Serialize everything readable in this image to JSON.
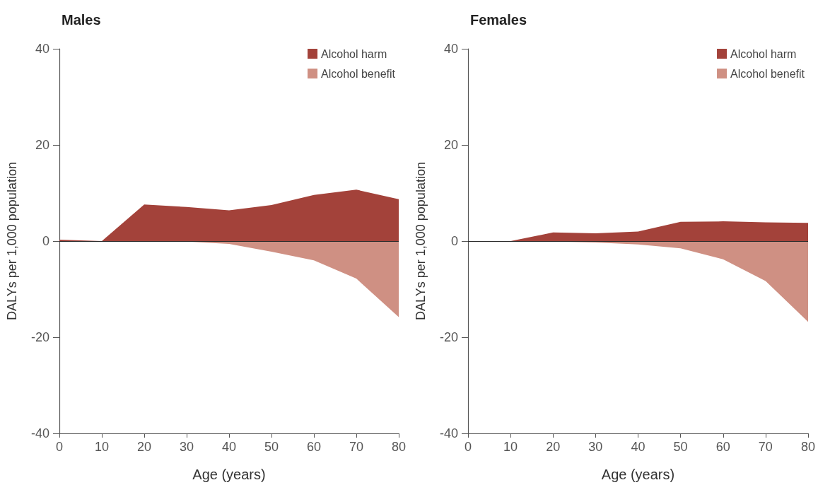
{
  "chart_data": [
    {
      "type": "area",
      "title": "Males",
      "xlabel": "Age (years)",
      "ylabel": "DALYs per 1,000 population",
      "x": [
        0,
        10,
        20,
        30,
        40,
        50,
        60,
        70,
        80
      ],
      "series": [
        {
          "name": "Alcohol harm",
          "color": "#a3423a",
          "values": [
            0.3,
            0,
            7.6,
            7.1,
            6.4,
            7.5,
            9.6,
            10.7,
            8.7
          ]
        },
        {
          "name": "Alcohol benefit",
          "color": "#cf9083",
          "values": [
            0,
            0,
            0,
            -0.1,
            -0.6,
            -2.2,
            -4.0,
            -7.8,
            -15.8
          ]
        }
      ],
      "xlim": [
        0,
        80
      ],
      "xticks": [
        0,
        10,
        20,
        30,
        40,
        50,
        60,
        70,
        80
      ],
      "ylim": [
        -40,
        40
      ],
      "yticks": [
        -40,
        -20,
        0,
        20,
        40
      ],
      "grid": false,
      "legend": "top right",
      "ref_lines": [
        {
          "axis": "y",
          "value": 0,
          "color": "#2b2b2b"
        }
      ]
    },
    {
      "type": "area",
      "title": "Females",
      "xlabel": "Age (years)",
      "ylabel": "DALYs per 1,000 population",
      "x": [
        0,
        10,
        20,
        30,
        40,
        50,
        60,
        70,
        80
      ],
      "series": [
        {
          "name": "Alcohol harm",
          "color": "#a3423a",
          "values": [
            0,
            0,
            1.8,
            1.6,
            2.0,
            4.0,
            4.1,
            3.9,
            3.8
          ]
        },
        {
          "name": "Alcohol benefit",
          "color": "#cf9083",
          "values": [
            0,
            0,
            -0.1,
            -0.3,
            -0.7,
            -1.5,
            -3.8,
            -8.3,
            -16.8
          ]
        }
      ],
      "xlim": [
        0,
        80
      ],
      "xticks": [
        0,
        10,
        20,
        30,
        40,
        50,
        60,
        70,
        80
      ],
      "ylim": [
        -40,
        40
      ],
      "yticks": [
        -40,
        -20,
        0,
        20,
        40
      ],
      "grid": false,
      "legend": "top right",
      "ref_lines": [
        {
          "axis": "y",
          "value": 0,
          "color": "#2b2b2b"
        }
      ]
    }
  ]
}
